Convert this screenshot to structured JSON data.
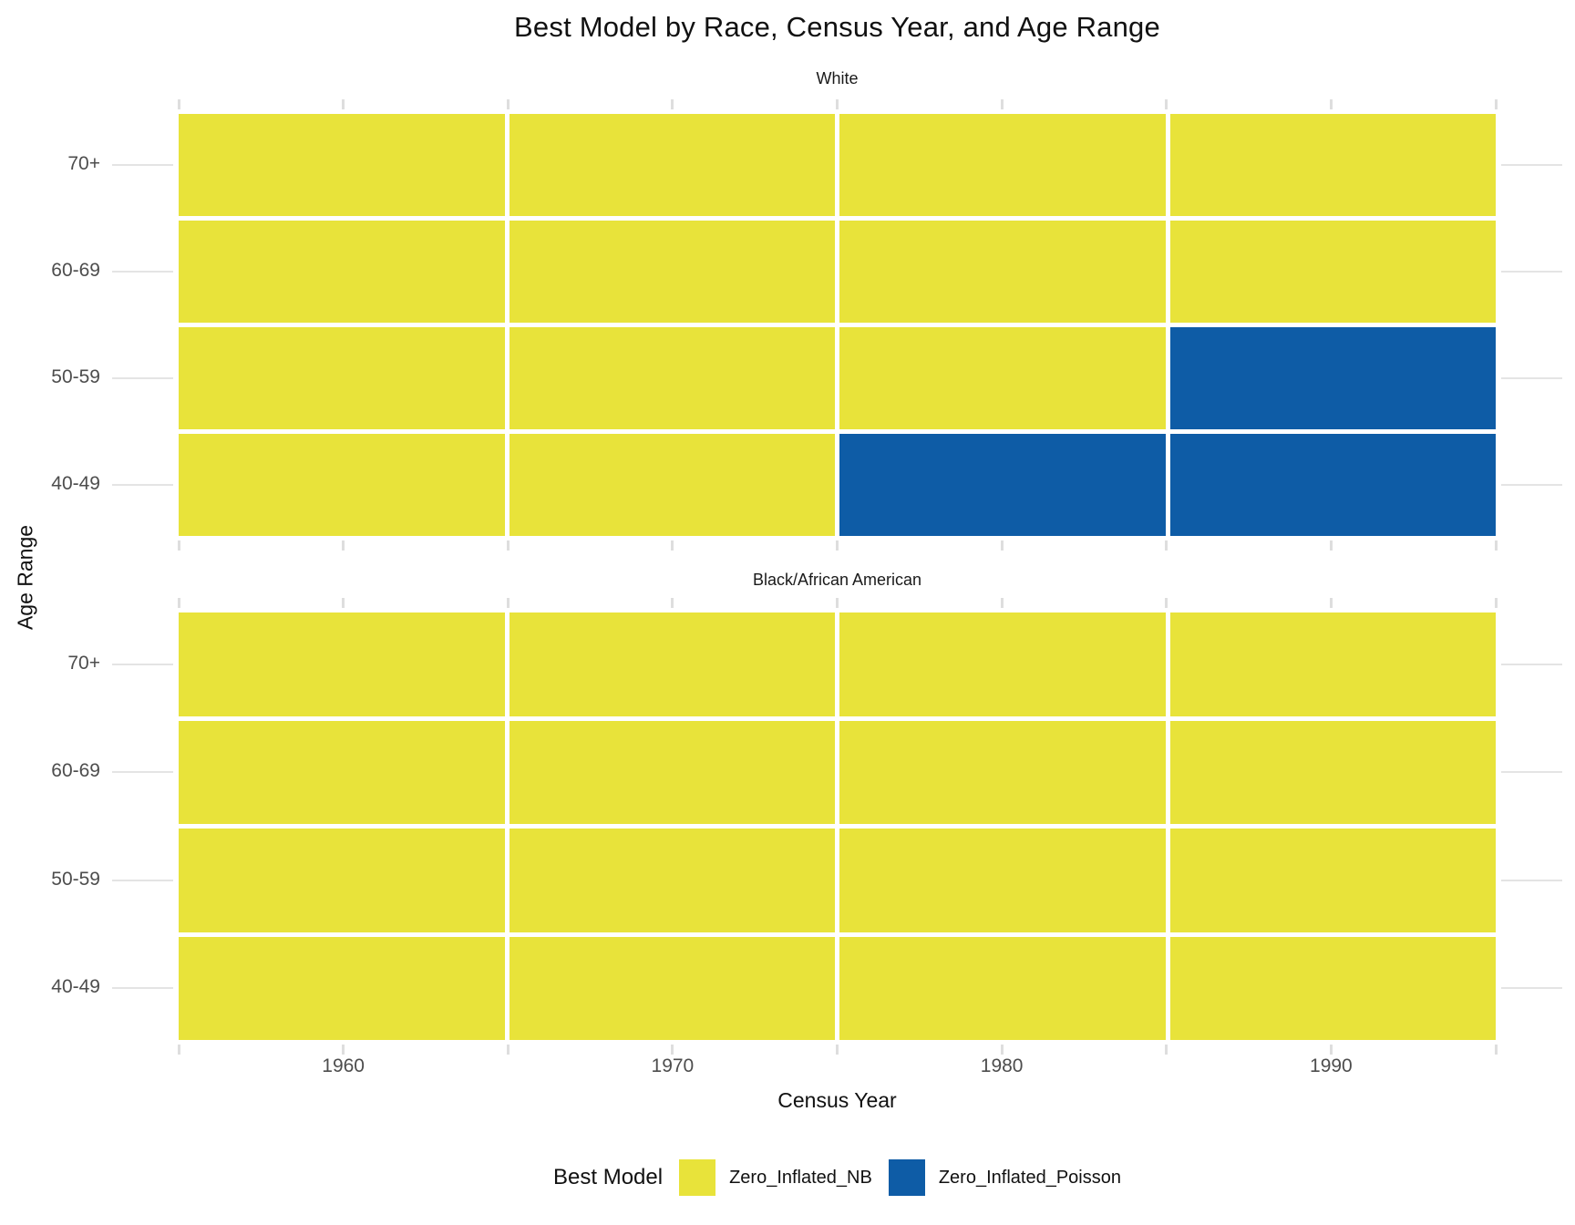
{
  "chart_data": {
    "type": "heatmap",
    "title": "Best Model by Race, Census Year, and Age Range",
    "xlabel": "Census Year",
    "ylabel": "Age Range",
    "x_tick_labels": [
      "1960",
      "1970",
      "1980",
      "1990"
    ],
    "y_tick_labels_top_to_bottom": [
      "70+",
      "60-69",
      "50-59",
      "40-49"
    ],
    "facets": [
      {
        "label": "White",
        "rows": [
          {
            "age_range": "70+",
            "values": [
              "Zero_Inflated_NB",
              "Zero_Inflated_NB",
              "Zero_Inflated_NB",
              "Zero_Inflated_NB"
            ]
          },
          {
            "age_range": "60-69",
            "values": [
              "Zero_Inflated_NB",
              "Zero_Inflated_NB",
              "Zero_Inflated_NB",
              "Zero_Inflated_NB"
            ]
          },
          {
            "age_range": "50-59",
            "values": [
              "Zero_Inflated_NB",
              "Zero_Inflated_NB",
              "Zero_Inflated_NB",
              "Zero_Inflated_Poisson"
            ]
          },
          {
            "age_range": "40-49",
            "values": [
              "Zero_Inflated_NB",
              "Zero_Inflated_NB",
              "Zero_Inflated_Poisson",
              "Zero_Inflated_Poisson"
            ]
          }
        ]
      },
      {
        "label": "Black/African American",
        "rows": [
          {
            "age_range": "70+",
            "values": [
              "Zero_Inflated_NB",
              "Zero_Inflated_NB",
              "Zero_Inflated_NB",
              "Zero_Inflated_NB"
            ]
          },
          {
            "age_range": "60-69",
            "values": [
              "Zero_Inflated_NB",
              "Zero_Inflated_NB",
              "Zero_Inflated_NB",
              "Zero_Inflated_NB"
            ]
          },
          {
            "age_range": "50-59",
            "values": [
              "Zero_Inflated_NB",
              "Zero_Inflated_NB",
              "Zero_Inflated_NB",
              "Zero_Inflated_NB"
            ]
          },
          {
            "age_range": "40-49",
            "values": [
              "Zero_Inflated_NB",
              "Zero_Inflated_NB",
              "Zero_Inflated_NB",
              "Zero_Inflated_NB"
            ]
          }
        ]
      }
    ],
    "legend": {
      "title": "Best Model",
      "entries": [
        {
          "label": "Zero_Inflated_NB",
          "color": "#E8E33A"
        },
        {
          "label": "Zero_Inflated_Poisson",
          "color": "#0E5CA6"
        }
      ]
    },
    "style": {
      "tick_mark_color": "#DEDEDE",
      "axis_text_color": "#4D4D4D",
      "background": "#FFFFFF"
    },
    "layout_hints": {
      "grid": "minor+major tick marks outside panels",
      "legend_position": "bottom",
      "facet_layout": "rows"
    }
  }
}
